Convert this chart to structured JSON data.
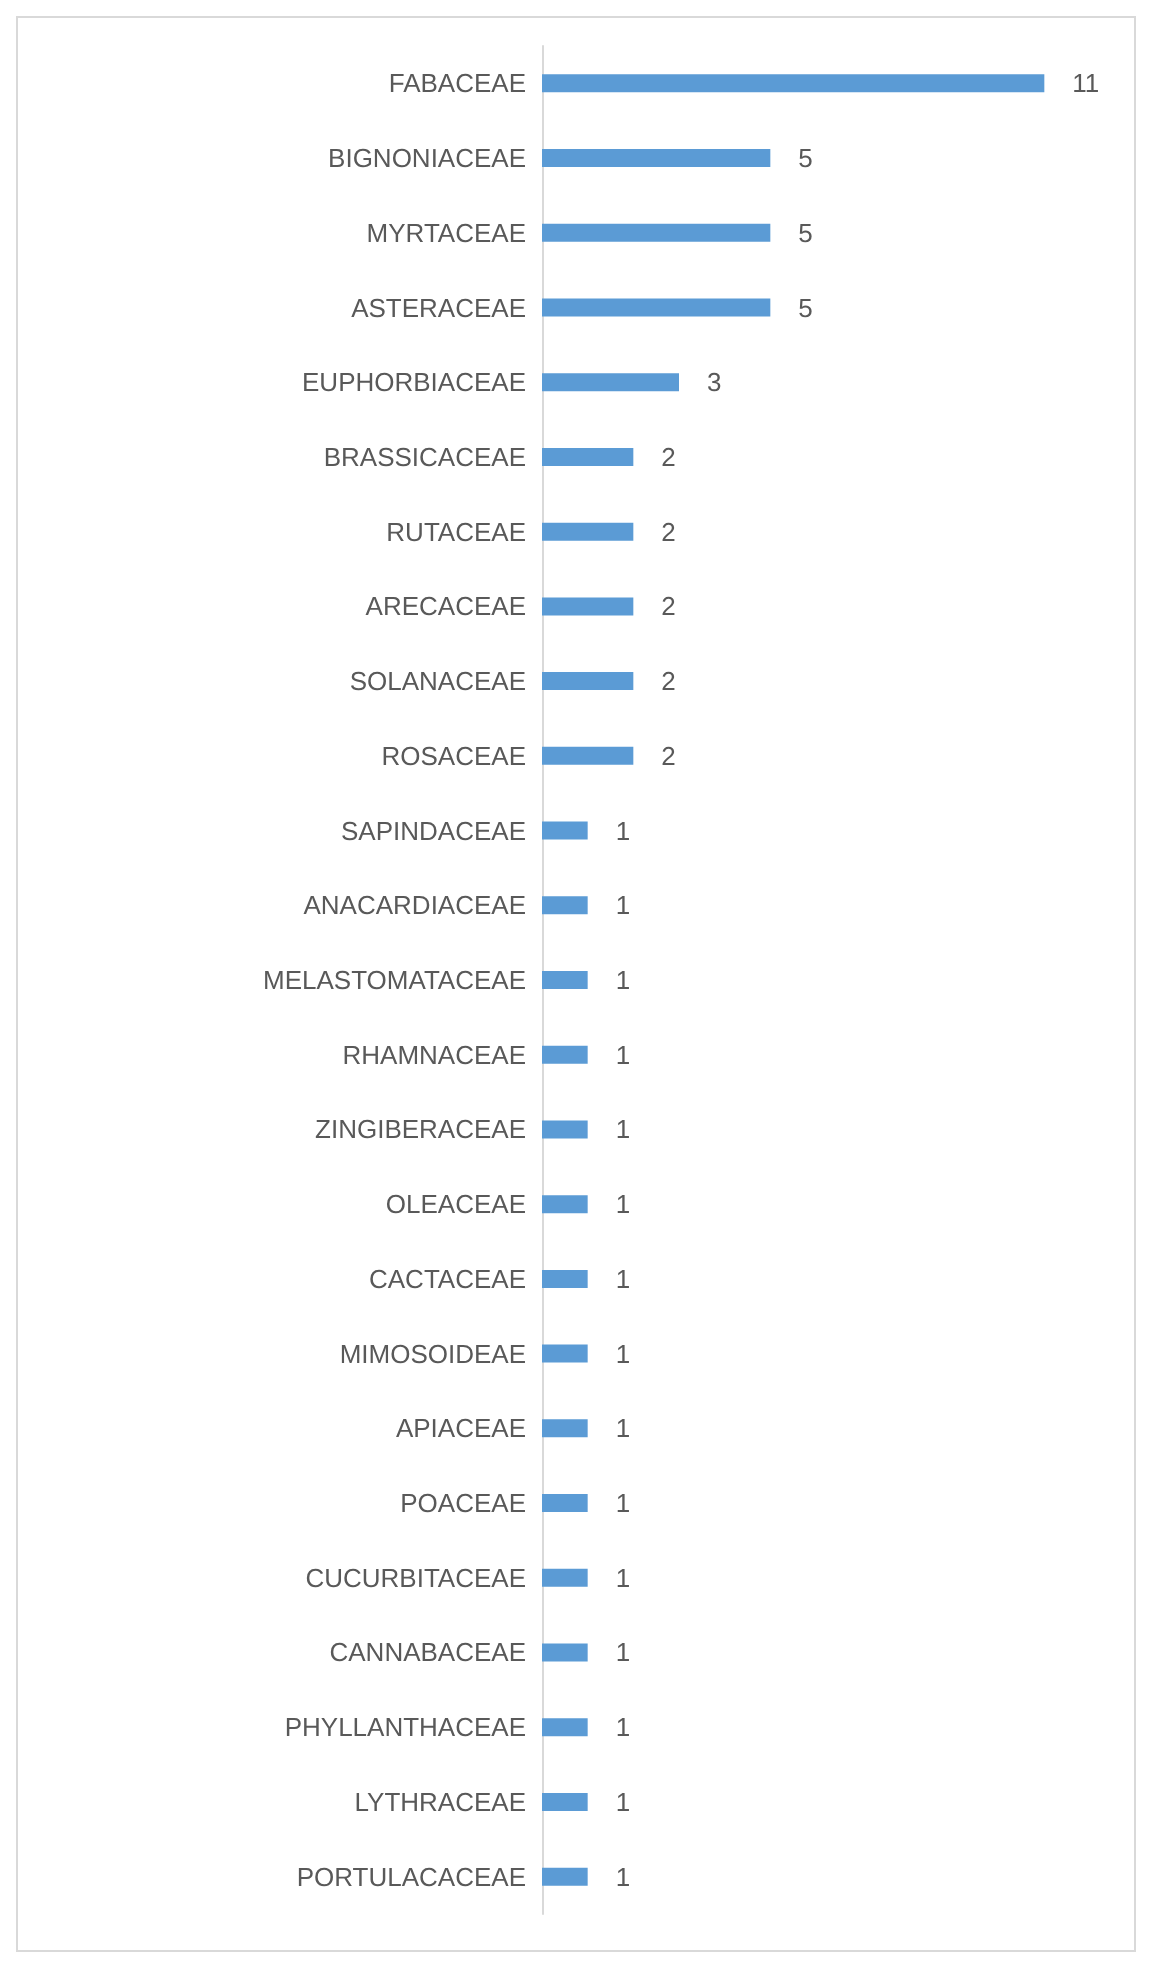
{
  "chart_data": {
    "type": "bar",
    "orientation": "horizontal",
    "categories": [
      "FABACEAE",
      "BIGNONIACEAE",
      "MYRTACEAE",
      "ASTERACEAE",
      "EUPHORBIACEAE",
      "BRASSICACEAE",
      "RUTACEAE",
      "ARECACEAE",
      "SOLANACEAE",
      "ROSACEAE",
      "SAPINDACEAE",
      "ANACARDIACEAE",
      "MELASTOMATACEAE",
      "RHAMNACEAE",
      "ZINGIBERACEAE",
      "OLEACEAE",
      "CACTACEAE",
      "MIMOSOIDEAE",
      "APIACEAE",
      "POACEAE",
      "CUCURBITACEAE",
      "CANNABACEAE",
      "PHYLLANTHACEAE",
      "LYTHRACEAE",
      "PORTULACACEAE"
    ],
    "values": [
      11,
      5,
      5,
      5,
      3,
      2,
      2,
      2,
      2,
      2,
      1,
      1,
      1,
      1,
      1,
      1,
      1,
      1,
      1,
      1,
      1,
      1,
      1,
      1,
      1
    ],
    "color": "#5b9bd5",
    "data_labels": true,
    "grid": false,
    "tick_labels": "y"
  }
}
